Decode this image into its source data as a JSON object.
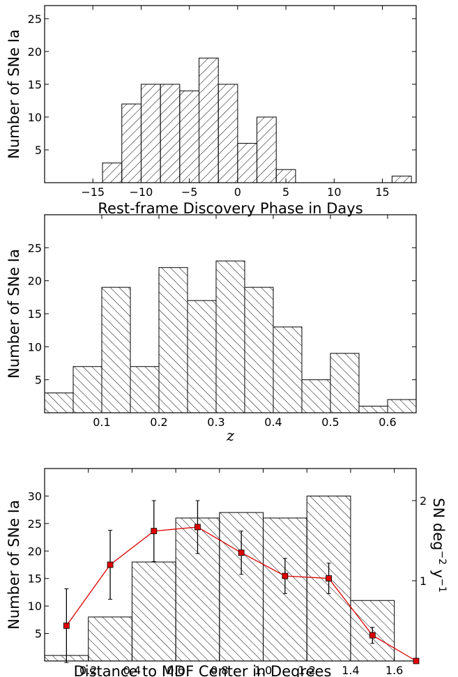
{
  "chart_data": [
    {
      "type": "bar",
      "subtype": "histogram",
      "hatch": "diagonal-forward",
      "xlabel": "Rest-frame Discovery Phase in Days",
      "ylabel": "Number of SNe Ia",
      "xlim": [
        -20,
        18.5
      ],
      "ylim": [
        0,
        27
      ],
      "xticks": [
        -15,
        -10,
        -5,
        0,
        5,
        10,
        15
      ],
      "xtick_labels": [
        "−15",
        "−10",
        "−5",
        "0",
        "5",
        "10",
        "15"
      ],
      "yticks": [
        5,
        10,
        15,
        20,
        25
      ],
      "ytick_labels": [
        "5",
        "10",
        "15",
        "20",
        "25"
      ],
      "bins": [
        {
          "x0": -14,
          "x1": -12,
          "count": 3
        },
        {
          "x0": -12,
          "x1": -10,
          "count": 12
        },
        {
          "x0": -10,
          "x1": -8,
          "count": 15
        },
        {
          "x0": -8,
          "x1": -6,
          "count": 15
        },
        {
          "x0": -6,
          "x1": -4,
          "count": 14
        },
        {
          "x0": -4,
          "x1": -2,
          "count": 19
        },
        {
          "x0": -2,
          "x1": 0,
          "count": 15
        },
        {
          "x0": 0,
          "x1": 2,
          "count": 6
        },
        {
          "x0": 2,
          "x1": 4,
          "count": 10
        },
        {
          "x0": 4,
          "x1": 6,
          "count": 2
        },
        {
          "x0": 16,
          "x1": 18,
          "count": 1
        }
      ]
    },
    {
      "type": "bar",
      "subtype": "histogram",
      "hatch": "diagonal-back",
      "xlabel": "z",
      "ylabel": "Number of SNe Ia",
      "xlim": [
        0.0,
        0.65
      ],
      "ylim": [
        0,
        30
      ],
      "xticks": [
        0.1,
        0.2,
        0.3,
        0.4,
        0.5,
        0.6
      ],
      "xtick_labels": [
        "0.1",
        "0.2",
        "0.3",
        "0.4",
        "0.5",
        "0.6"
      ],
      "yticks": [
        5,
        10,
        15,
        20,
        25
      ],
      "ytick_labels": [
        "5",
        "10",
        "15",
        "20",
        "25"
      ],
      "bins": [
        {
          "x0": 0.0,
          "x1": 0.05,
          "count": 3
        },
        {
          "x0": 0.05,
          "x1": 0.1,
          "count": 7
        },
        {
          "x0": 0.1,
          "x1": 0.15,
          "count": 19
        },
        {
          "x0": 0.15,
          "x1": 0.2,
          "count": 7
        },
        {
          "x0": 0.2,
          "x1": 0.25,
          "count": 22
        },
        {
          "x0": 0.25,
          "x1": 0.3,
          "count": 17
        },
        {
          "x0": 0.3,
          "x1": 0.35,
          "count": 23
        },
        {
          "x0": 0.35,
          "x1": 0.4,
          "count": 19
        },
        {
          "x0": 0.4,
          "x1": 0.45,
          "count": 13
        },
        {
          "x0": 0.45,
          "x1": 0.5,
          "count": 5
        },
        {
          "x0": 0.5,
          "x1": 0.55,
          "count": 9
        },
        {
          "x0": 0.55,
          "x1": 0.6,
          "count": 1
        },
        {
          "x0": 0.6,
          "x1": 0.65,
          "count": 2
        }
      ]
    },
    {
      "type": "bar",
      "subtype": "histogram-with-line",
      "hatch": "diagonal-back",
      "xlabel": "Distance to MDF Center in Degrees",
      "ylabel": "Number of SNe Ia",
      "ylabel_right_parts": {
        "base": "SN deg",
        "exp1": "−2",
        "mid": " y",
        "exp2": "−1"
      },
      "xlim": [
        0.0,
        1.7
      ],
      "ylim": [
        0,
        35
      ],
      "y2lim": [
        0,
        2.4
      ],
      "xticks": [
        0.2,
        0.4,
        0.6,
        0.8,
        1.0,
        1.2,
        1.4,
        1.6
      ],
      "xtick_labels": [
        "0.2",
        "0.4",
        "0.6",
        "0.8",
        "1.0",
        "1.2",
        "1.4",
        "1.6"
      ],
      "yticks": [
        5,
        10,
        15,
        20,
        25,
        30
      ],
      "ytick_labels": [
        "5",
        "10",
        "15",
        "20",
        "25",
        "30"
      ],
      "y2ticks": [
        1,
        2
      ],
      "y2tick_labels": [
        "1",
        "2"
      ],
      "bins": [
        {
          "x0": 0.0,
          "x1": 0.2,
          "count": 1
        },
        {
          "x0": 0.2,
          "x1": 0.4,
          "count": 8
        },
        {
          "x0": 0.4,
          "x1": 0.6,
          "count": 18
        },
        {
          "x0": 0.6,
          "x1": 0.8,
          "count": 26
        },
        {
          "x0": 0.8,
          "x1": 1.0,
          "count": 27
        },
        {
          "x0": 1.0,
          "x1": 1.2,
          "count": 26
        },
        {
          "x0": 1.2,
          "x1": 1.4,
          "count": 30
        },
        {
          "x0": 1.4,
          "x1": 1.6,
          "count": 11
        }
      ],
      "series": [
        {
          "color": "#dd0000",
          "marker": "square",
          "points": [
            {
              "x": 0.1,
              "y": 0.44,
              "err": 0.46
            },
            {
              "x": 0.3,
              "y": 1.2,
              "err": 0.43
            },
            {
              "x": 0.5,
              "y": 1.62,
              "err": 0.38
            },
            {
              "x": 0.7,
              "y": 1.67,
              "err": 0.33
            },
            {
              "x": 0.9,
              "y": 1.35,
              "err": 0.27
            },
            {
              "x": 1.1,
              "y": 1.06,
              "err": 0.22
            },
            {
              "x": 1.3,
              "y": 1.03,
              "err": 0.19
            },
            {
              "x": 1.5,
              "y": 0.32,
              "err": 0.1
            },
            {
              "x": 1.7,
              "y": 0.0,
              "err": 0.0
            }
          ]
        }
      ]
    }
  ]
}
